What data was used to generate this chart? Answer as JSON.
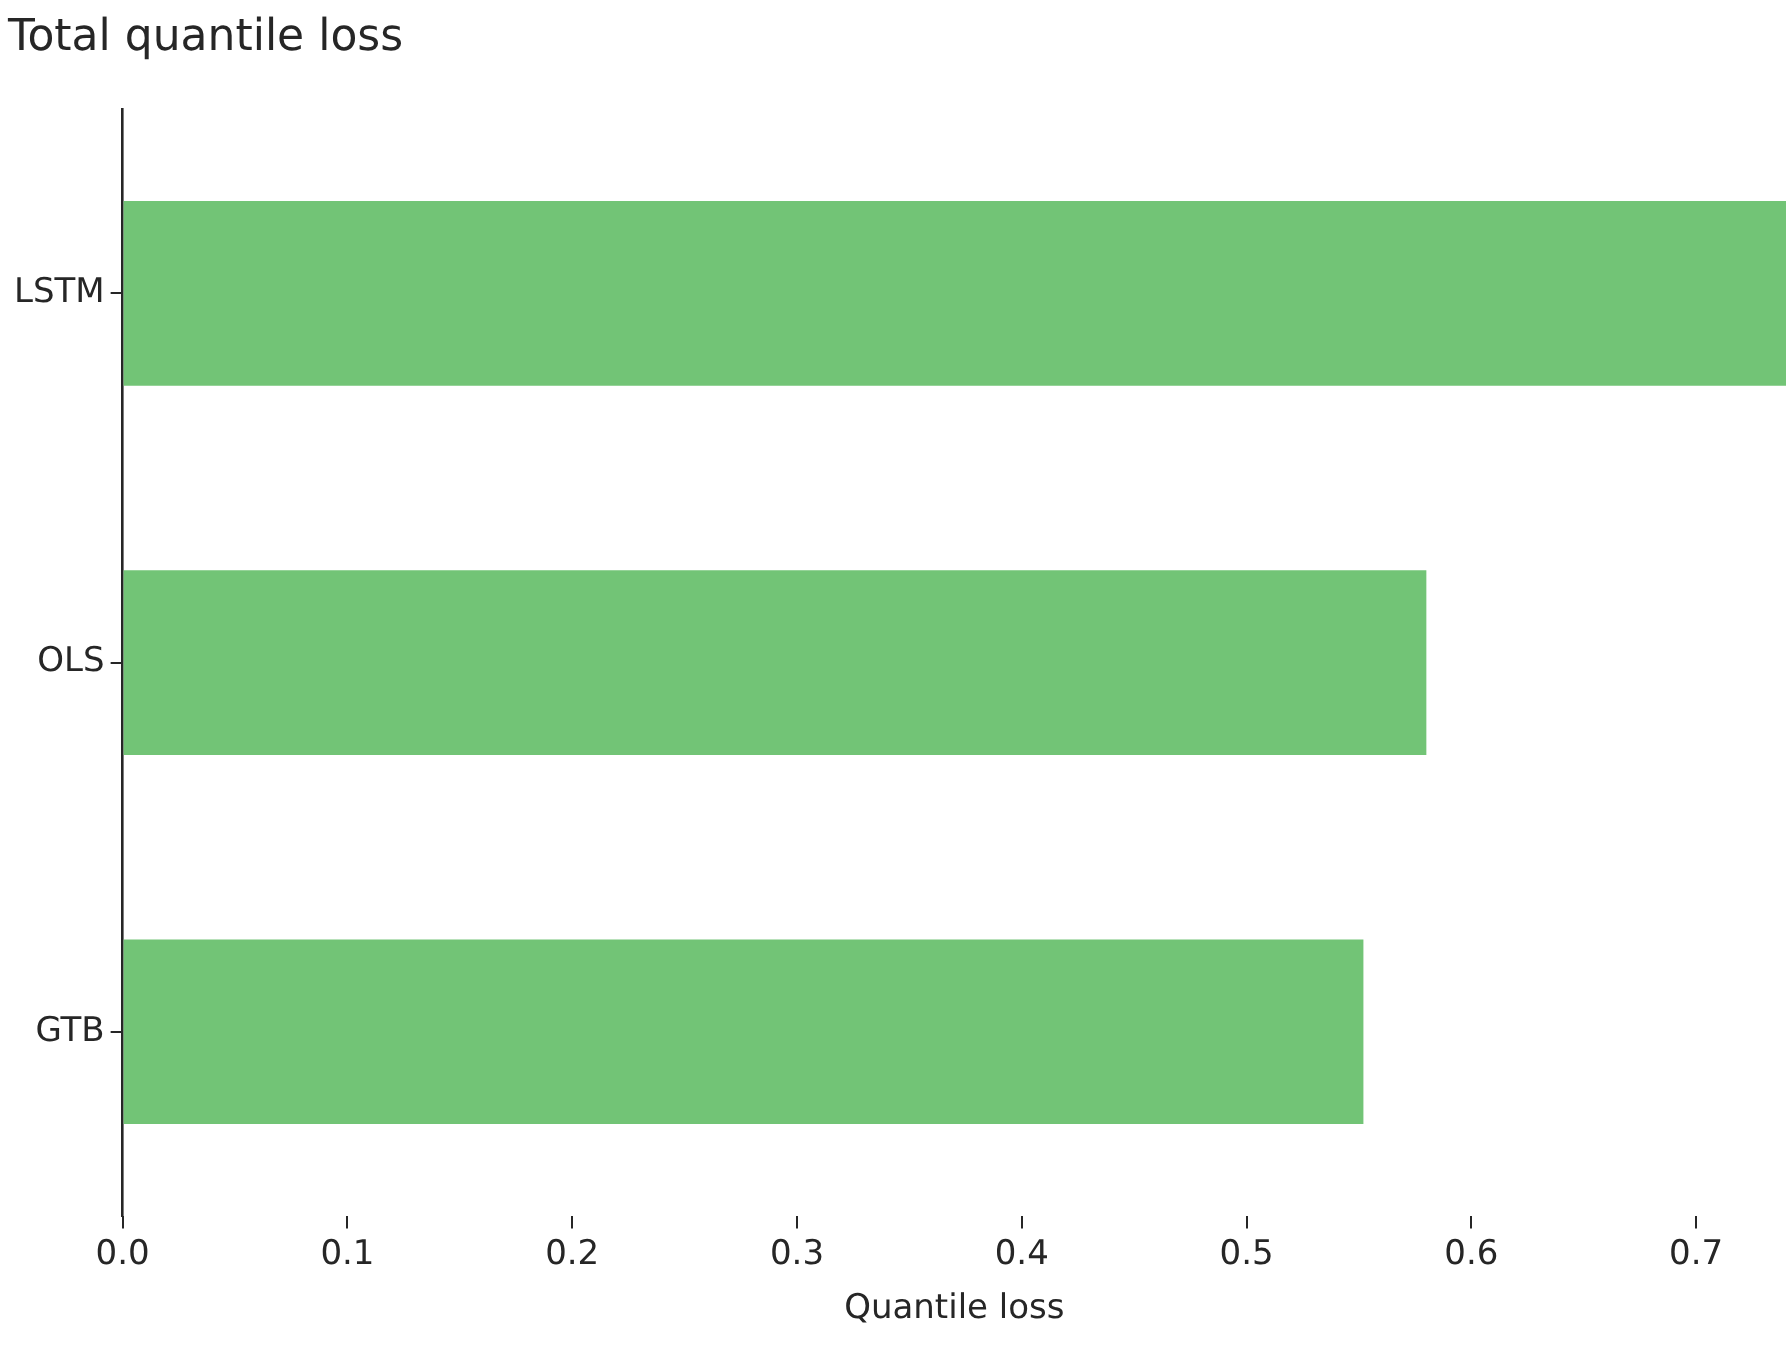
{
  "chart_data": {
    "type": "bar",
    "orientation": "horizontal",
    "title": "Total quantile loss",
    "xlabel": "Quantile loss",
    "categories": [
      "LSTM",
      "OLS",
      "GTB"
    ],
    "values": [
      0.74,
      0.58,
      0.552
    ],
    "color": "#72c476",
    "xlim": [
      0,
      0.74
    ],
    "xticks": [
      {
        "value": 0,
        "label": "0.0"
      },
      {
        "value": 0.1,
        "label": "0.1"
      },
      {
        "value": 0.2,
        "label": "0.2"
      },
      {
        "value": 0.3,
        "label": "0.3"
      },
      {
        "value": 0.4,
        "label": "0.4"
      },
      {
        "value": 0.5,
        "label": "0.5"
      },
      {
        "value": 0.6,
        "label": "0.6"
      },
      {
        "value": 0.7,
        "label": "0.7"
      }
    ],
    "grid": false,
    "legend": false
  }
}
